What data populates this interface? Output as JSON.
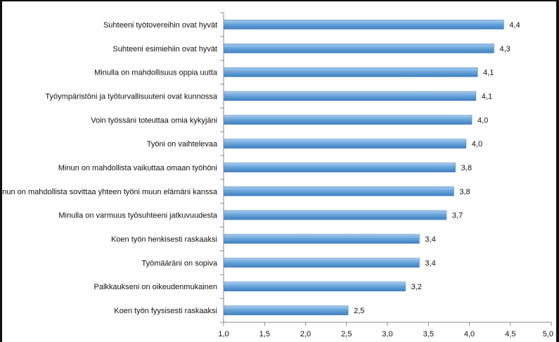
{
  "chart_data": {
    "type": "bar",
    "orientation": "horizontal",
    "categories": [
      "Suhteeni työtovereihin ovat hyvät",
      "Suhteeni esimiehiin ovat hyvät",
      "Minulla on mahdollisuus oppia uutta",
      "Työympäristöni ja työturvallisuuteni ovat kunnossa",
      "Voin työssäni toteuttaa omia kykyjäni",
      "Työni on vaihtelevaa",
      "Minun on mahdollista vaikuttaa omaan työhöni",
      "Minun on mahdollista sovittaa yhteen työni muun elämäni kanssa",
      "Minulla on varmuus työsuhteeni jatkuvuudesta",
      "Koen työn henkisesti raskaaksi",
      "Työmääräni on sopiva",
      "Palkkaukseni on oikeudenmukainen",
      "Koen työn fyysisesti raskaaksi"
    ],
    "values": [
      4.42,
      4.3,
      4.1,
      4.08,
      4.03,
      3.96,
      3.83,
      3.81,
      3.72,
      3.39,
      3.39,
      3.22,
      2.52
    ],
    "value_labels": [
      "4,4",
      "4,3",
      "4,1",
      "4,1",
      "4,0",
      "4,0",
      "3,8",
      "3,8",
      "3,7",
      "3,4",
      "3,4",
      "3,2",
      "2,5"
    ],
    "xlim": [
      1.0,
      5.0
    ],
    "xticks": [
      1.0,
      1.5,
      2.0,
      2.5,
      3.0,
      3.5,
      4.0,
      4.5,
      5.0
    ],
    "xtick_labels": [
      "1,0",
      "1,5",
      "2,0",
      "2,5",
      "3,0",
      "3,5",
      "4,0",
      "4,5",
      "5,0"
    ],
    "title": "",
    "xlabel": "",
    "ylabel": "",
    "grid": false,
    "legend": "none",
    "bar_color": "#5b9bd5",
    "bar_edge_color": "#4a86c0"
  }
}
